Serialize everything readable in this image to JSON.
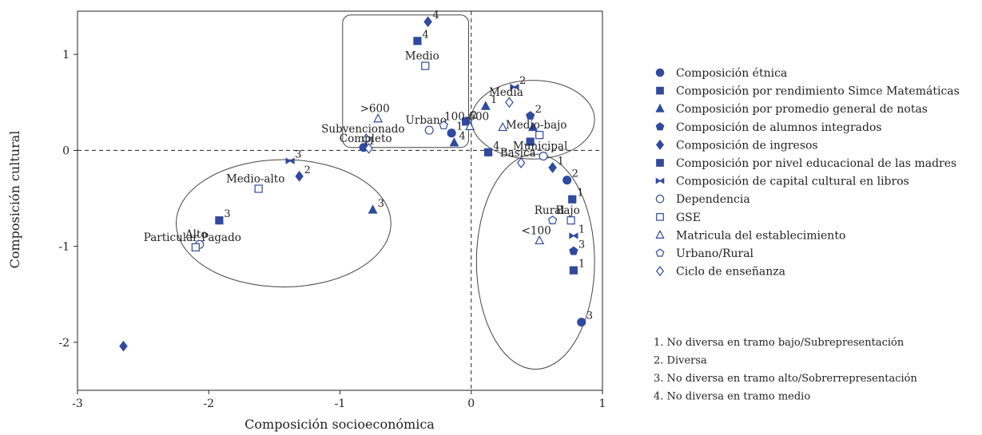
{
  "chart_data": {
    "type": "scatter",
    "xlabel": "Composición socioeconómica",
    "ylabel": "Composición cultural",
    "xlim": [
      -3,
      1
    ],
    "ylim": [
      -2.5,
      1.45
    ],
    "xticks": [
      -3,
      -2,
      -1,
      0,
      1
    ],
    "yticks": [
      -2,
      -1,
      0,
      1
    ],
    "grid": false,
    "reference_lines": {
      "x": 0,
      "y": 0,
      "style": "dashed"
    },
    "legend_placement": "right",
    "color": "#2f4a9e",
    "series": [
      {
        "name": "Composición étnica",
        "marker": "circle-filled",
        "points": [
          {
            "x": -0.82,
            "y": 0.03,
            "label": "1"
          },
          {
            "x": -0.15,
            "y": 0.18,
            "label": "1"
          },
          {
            "x": 0.73,
            "y": -0.31,
            "label": "2"
          },
          {
            "x": 0.84,
            "y": -1.79,
            "label": "3"
          }
        ]
      },
      {
        "name": "Composición por rendimiento Simce Matemáticas",
        "marker": "square-filled",
        "points": [
          {
            "x": -0.41,
            "y": 1.14,
            "label": "4"
          },
          {
            "x": -1.92,
            "y": -0.73,
            "label": "3"
          },
          {
            "x": 0.77,
            "y": -0.51,
            "label": "1"
          }
        ]
      },
      {
        "name": "Composición por promedio general de notas",
        "marker": "triangle-filled",
        "points": [
          {
            "x": 0.11,
            "y": 0.46,
            "label": "1"
          },
          {
            "x": -0.13,
            "y": 0.08,
            "label": "4"
          },
          {
            "x": -0.75,
            "y": -0.62,
            "label": "3"
          },
          {
            "x": 0.47,
            "y": 0.24,
            "label": ""
          }
        ]
      },
      {
        "name": "Composición de alumnos integrados",
        "marker": "pentagon-filled",
        "points": [
          {
            "x": 0.45,
            "y": 0.36,
            "label": "2"
          },
          {
            "x": 0.78,
            "y": -1.05,
            "label": "3"
          }
        ]
      },
      {
        "name": "Composición de ingresos",
        "marker": "diamond-filled",
        "points": [
          {
            "x": -0.33,
            "y": 1.34,
            "label": "4"
          },
          {
            "x": -1.31,
            "y": -0.27,
            "label": "2"
          },
          {
            "x": 0.62,
            "y": -0.18,
            "label": "1"
          },
          {
            "x": -2.65,
            "y": -2.04,
            "label": ""
          }
        ]
      },
      {
        "name": "Composición por nivel educacional de las madres",
        "marker": "square-filled",
        "points": [
          {
            "x": -0.04,
            "y": 0.3,
            "label": "2"
          },
          {
            "x": 0.13,
            "y": -0.02,
            "label": "4"
          },
          {
            "x": 0.45,
            "y": 0.09,
            "label": "2"
          },
          {
            "x": 0.78,
            "y": -1.25,
            "label": "1"
          }
        ]
      },
      {
        "name": "Composición de capital cultural en libros",
        "marker": "bowtie",
        "points": [
          {
            "x": -1.38,
            "y": -0.11,
            "label": "3"
          },
          {
            "x": 0.33,
            "y": 0.66,
            "label": "2"
          },
          {
            "x": 0.78,
            "y": -0.89,
            "label": "1"
          }
        ]
      },
      {
        "name": "Dependencia",
        "marker": "circle-open",
        "points": [
          {
            "x": -0.32,
            "y": 0.21,
            "label": "Urbano"
          },
          {
            "x": -2.07,
            "y": -0.98,
            "label": "Alto"
          },
          {
            "x": 0.55,
            "y": -0.06,
            "label": "Municipal"
          }
        ]
      },
      {
        "name": "GSE",
        "marker": "square-open",
        "points": [
          {
            "x": -0.35,
            "y": 0.88,
            "label": "Medio"
          },
          {
            "x": -1.62,
            "y": -0.4,
            "label": "Medio-alto"
          },
          {
            "x": -2.1,
            "y": -1.01,
            "label": "Particular Pagado"
          },
          {
            "x": 0.52,
            "y": 0.16,
            "label": "Medio-bajo"
          },
          {
            "x": 0.76,
            "y": -0.73,
            "label": "Bajo"
          }
        ]
      },
      {
        "name": "Matricula del establecimiento",
        "marker": "triangle-open",
        "points": [
          {
            "x": -0.71,
            "y": 0.33,
            "label": ">600"
          },
          {
            "x": -0.01,
            "y": 0.25,
            "label": "100-600"
          },
          {
            "x": 0.24,
            "y": 0.24,
            "label": ""
          },
          {
            "x": 0.52,
            "y": -0.94,
            "label": "<100"
          }
        ]
      },
      {
        "name": "Urbano/Rural",
        "marker": "pentagon-open",
        "points": [
          {
            "x": -0.21,
            "y": 0.26,
            "label": ""
          },
          {
            "x": 0.62,
            "y": -0.73,
            "label": "Rural"
          }
        ]
      },
      {
        "name": "Ciclo de enseñanza",
        "marker": "diamond-open",
        "points": [
          {
            "x": -0.8,
            "y": 0.12,
            "label": "Subvencionado"
          },
          {
            "x": 0.29,
            "y": 0.5,
            "label": "Media"
          },
          {
            "x": 0.38,
            "y": -0.13,
            "label": "Basica"
          },
          {
            "x": -0.78,
            "y": 0.02,
            "label": "Completo"
          }
        ]
      }
    ],
    "legend_notes": [
      "1. No diversa en tramo bajo/Subrepresentación",
      "2. Diversa",
      "3. No diversa en tramo alto/Sobrerrepresentación",
      "4. No diversa en tramo medio"
    ]
  }
}
